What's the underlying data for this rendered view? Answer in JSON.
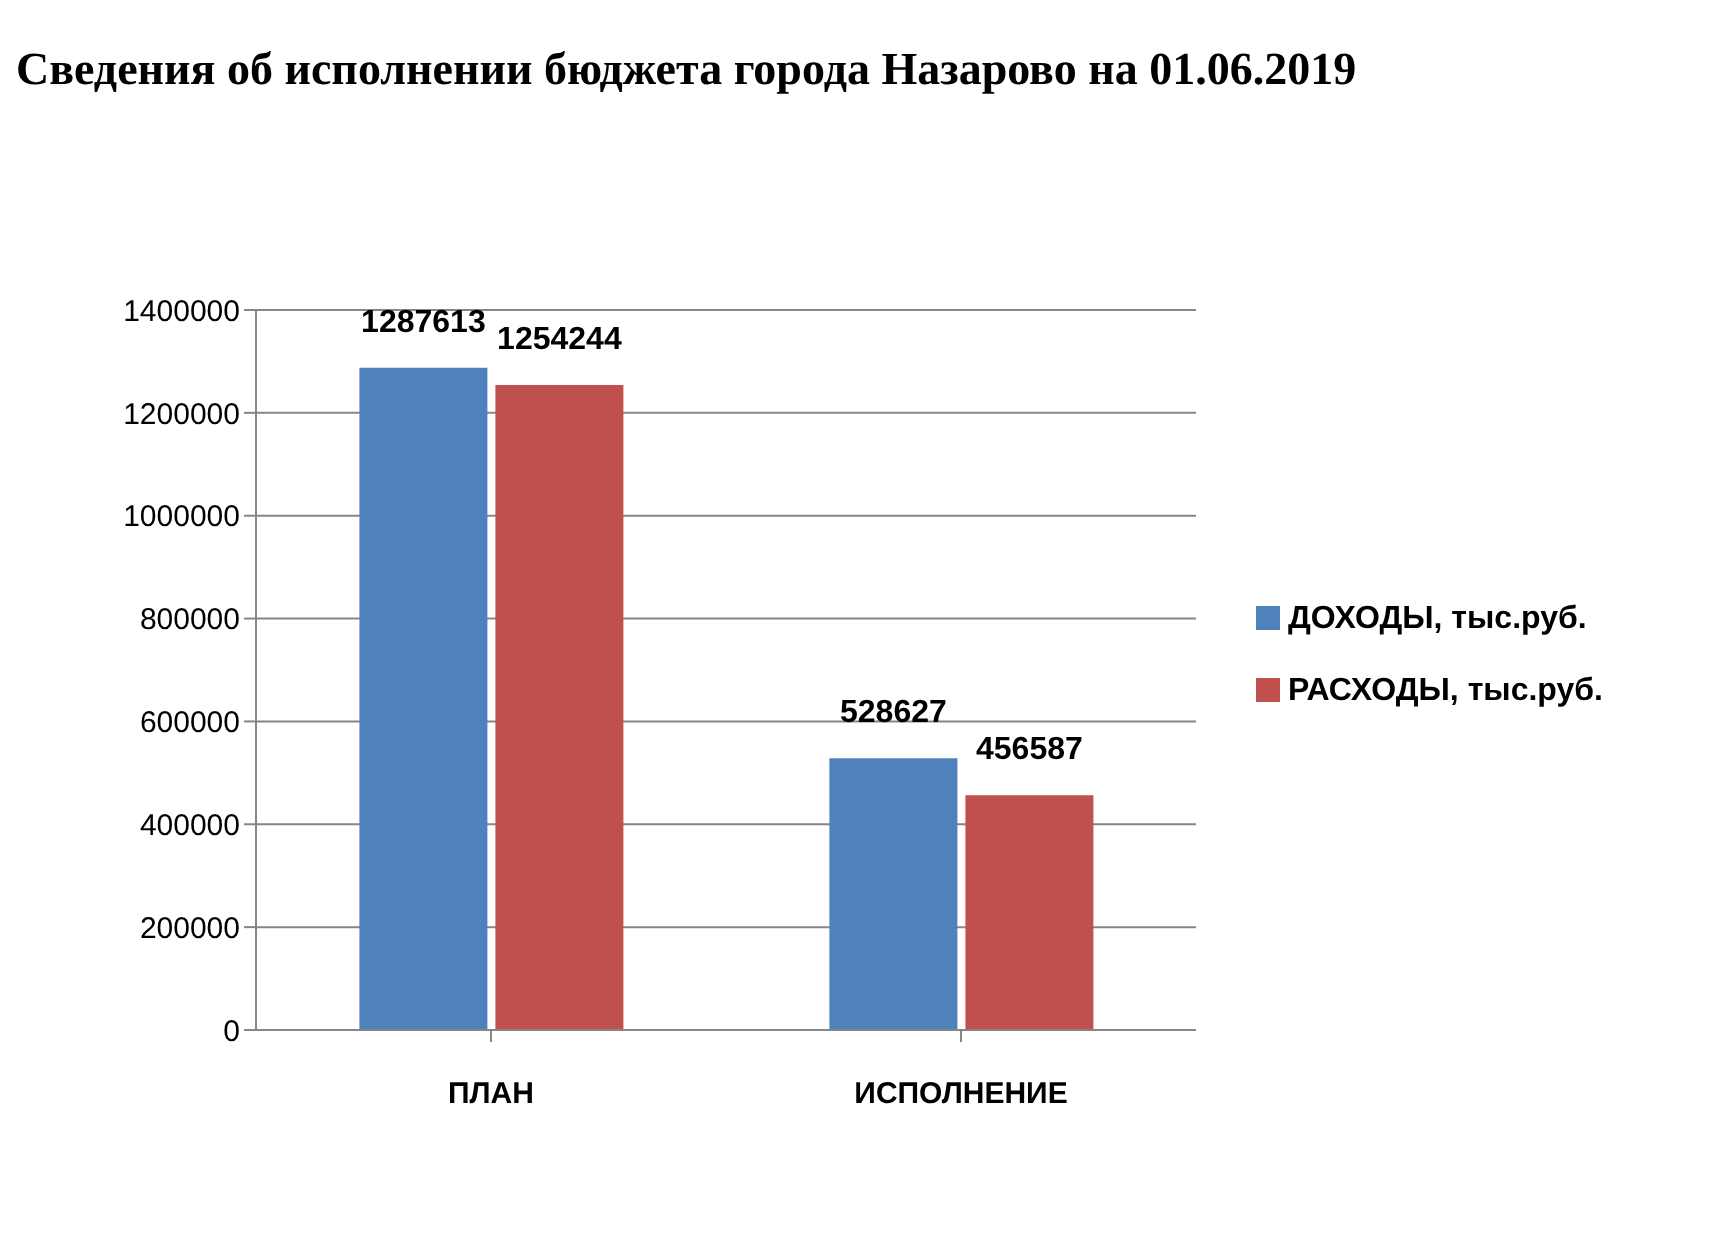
{
  "chart_data": {
    "type": "bar",
    "title": "Сведения об исполнении бюджета города Назарово на 01.06.2019",
    "categories": [
      "ПЛАН",
      "ИСПОЛНЕНИЕ"
    ],
    "series": [
      {
        "name": "ДОХОДЫ, тыс.руб.",
        "color": "#4f81bd",
        "values": [
          1287613,
          528627
        ]
      },
      {
        "name": "РАСХОДЫ, тыс.руб.",
        "color": "#c0504d",
        "values": [
          1254244,
          456587
        ]
      }
    ],
    "ylim": [
      0,
      1400000
    ],
    "yticks": [
      0,
      200000,
      400000,
      600000,
      800000,
      1000000,
      1200000,
      1400000
    ],
    "grid": "y",
    "legend": "right",
    "data_labels": true
  }
}
